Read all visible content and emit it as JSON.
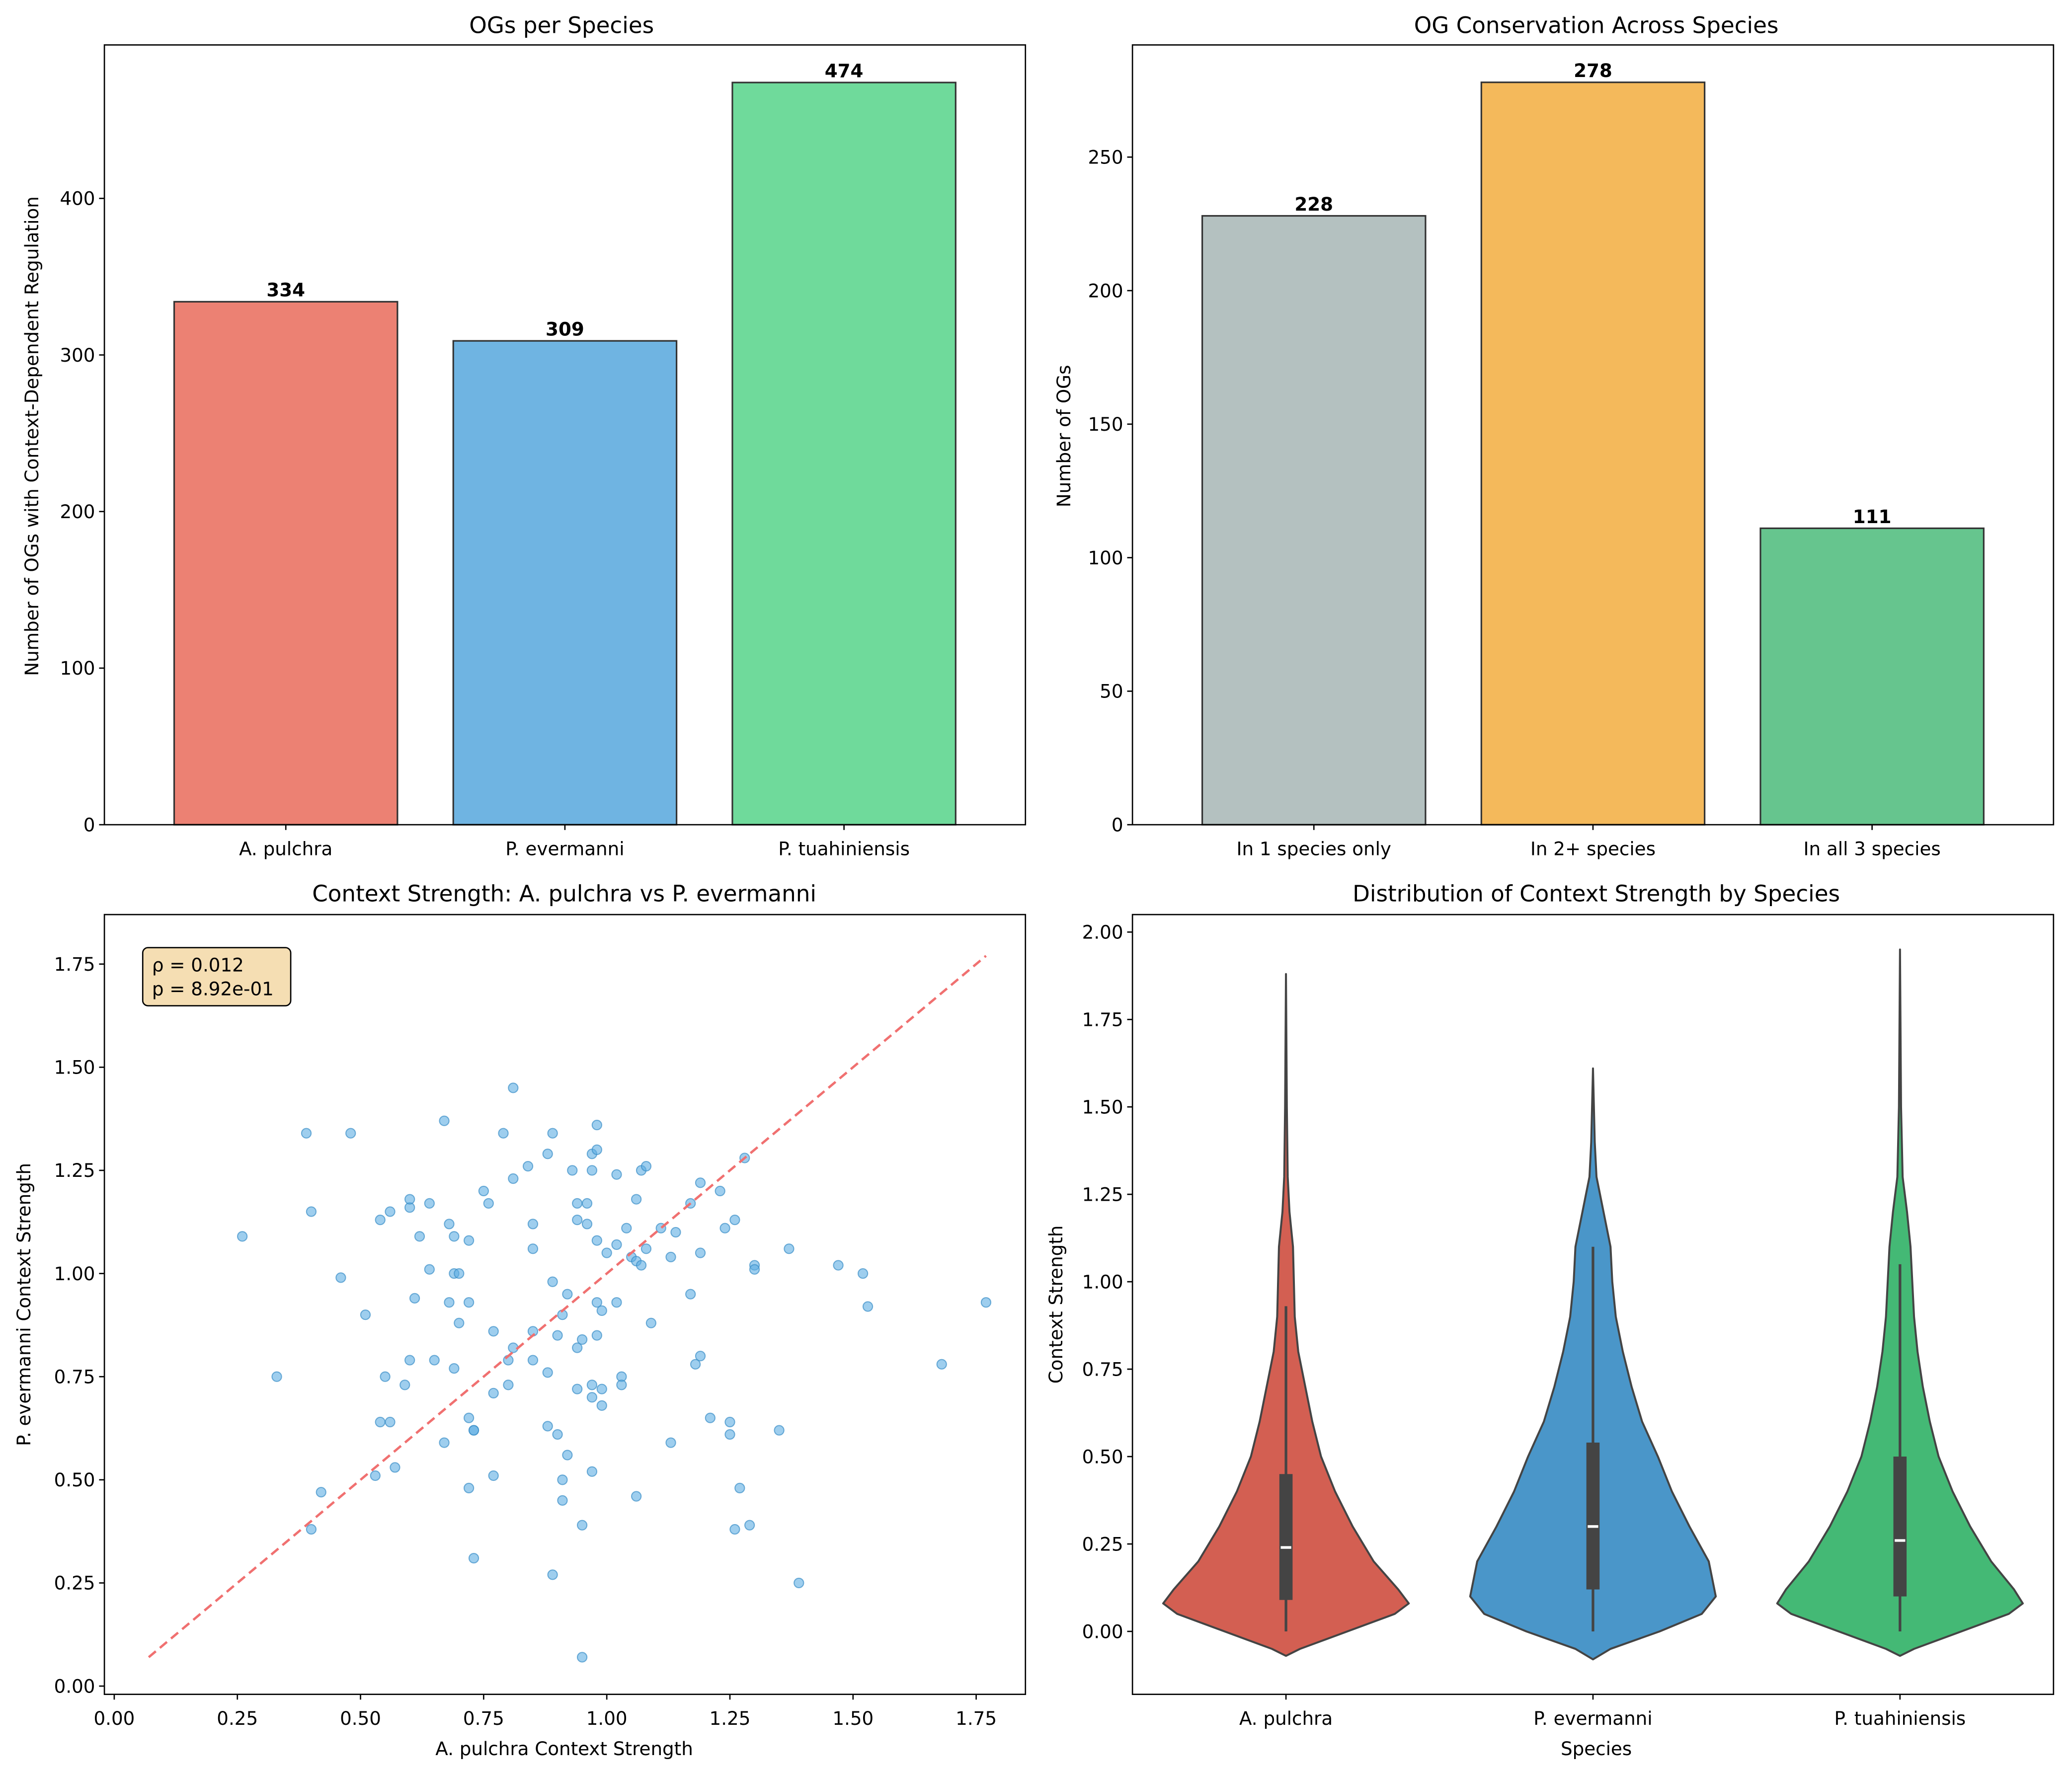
{
  "chart_data": [
    {
      "id": "og-per-species",
      "type": "bar",
      "title": "OGs per Species",
      "xlabel": "",
      "ylabel": "Number of OGs with Context-Dependent Regulation",
      "categories": [
        "A. pulchra",
        "P. evermanni",
        "P. tuahiniensis"
      ],
      "values": [
        334,
        309,
        474
      ],
      "value_labels": [
        "334",
        "309",
        "474"
      ],
      "colors": [
        "#ec8173",
        "#6fb4e2",
        "#6fda9b"
      ],
      "ylim": [
        0,
        498
      ],
      "yticks": [
        0,
        100,
        200,
        300,
        400
      ],
      "ytick_labels": [
        "0",
        "100",
        "200",
        "300",
        "400"
      ],
      "grid": false
    },
    {
      "id": "og-conservation",
      "type": "bar",
      "title": "OG Conservation Across Species",
      "xlabel": "",
      "ylabel": "Number of OGs",
      "categories": [
        "In 1 species only",
        "In 2+ species",
        "In all 3 species"
      ],
      "values": [
        228,
        278,
        111
      ],
      "value_labels": [
        "228",
        "278",
        "111"
      ],
      "colors": [
        "#b4c1c0",
        "#f4b95b",
        "#66c58e"
      ],
      "ylim": [
        0,
        292
      ],
      "yticks": [
        0,
        50,
        100,
        150,
        200,
        250
      ],
      "ytick_labels": [
        "0",
        "50",
        "100",
        "150",
        "200",
        "250"
      ],
      "grid": false
    },
    {
      "id": "context-strength-scatter",
      "type": "scatter",
      "title": "Context Strength: A. pulchra vs P. evermanni",
      "xlabel": "A. pulchra Context Strength",
      "ylabel": "P. evermanni Context Strength",
      "xlim": [
        -0.02,
        1.85
      ],
      "ylim": [
        -0.02,
        1.87
      ],
      "xticks": [
        0.0,
        0.25,
        0.5,
        0.75,
        1.0,
        1.25,
        1.5,
        1.75
      ],
      "xtick_labels": [
        "0.00",
        "0.25",
        "0.50",
        "0.75",
        "1.00",
        "1.25",
        "1.50",
        "1.75"
      ],
      "yticks": [
        0.0,
        0.25,
        0.5,
        0.75,
        1.0,
        1.25,
        1.5,
        1.75
      ],
      "ytick_labels": [
        "0.00",
        "0.25",
        "0.50",
        "0.75",
        "1.00",
        "1.25",
        "1.50",
        "1.75"
      ],
      "point_color": "#5dade2",
      "reference_line": {
        "from": [
          0.07,
          0.07
        ],
        "to": [
          1.77,
          1.77
        ],
        "color": "#f07070",
        "style": "dashed"
      },
      "annotation": {
        "lines": [
          "ρ = 0.012",
          "p = 8.92e-01"
        ],
        "position": "top-left",
        "background": "#f5deb3"
      },
      "grid": false,
      "points": [
        [
          0.26,
          1.09
        ],
        [
          0.33,
          0.75
        ],
        [
          0.39,
          1.34
        ],
        [
          0.4,
          1.15
        ],
        [
          0.4,
          0.38
        ],
        [
          0.42,
          0.47
        ],
        [
          0.46,
          0.99
        ],
        [
          0.48,
          1.34
        ],
        [
          0.51,
          0.9
        ],
        [
          0.53,
          0.51
        ],
        [
          0.54,
          1.13
        ],
        [
          0.54,
          0.64
        ],
        [
          0.55,
          0.75
        ],
        [
          0.56,
          1.15
        ],
        [
          0.56,
          0.64
        ],
        [
          0.57,
          0.53
        ],
        [
          0.59,
          0.73
        ],
        [
          0.6,
          1.16
        ],
        [
          0.6,
          1.18
        ],
        [
          0.6,
          0.79
        ],
        [
          0.61,
          0.94
        ],
        [
          0.62,
          1.09
        ],
        [
          0.64,
          1.17
        ],
        [
          0.64,
          1.01
        ],
        [
          0.65,
          0.79
        ],
        [
          0.67,
          1.37
        ],
        [
          0.67,
          0.59
        ],
        [
          0.68,
          1.12
        ],
        [
          0.68,
          0.93
        ],
        [
          0.69,
          0.77
        ],
        [
          0.69,
          1.09
        ],
        [
          0.69,
          1.0
        ],
        [
          0.7,
          1.0
        ],
        [
          0.7,
          0.88
        ],
        [
          0.72,
          1.08
        ],
        [
          0.72,
          0.93
        ],
        [
          0.72,
          0.65
        ],
        [
          0.72,
          0.48
        ],
        [
          0.73,
          0.62
        ],
        [
          0.73,
          0.62
        ],
        [
          0.73,
          0.31
        ],
        [
          0.75,
          1.2
        ],
        [
          0.76,
          1.17
        ],
        [
          0.77,
          0.86
        ],
        [
          0.77,
          0.71
        ],
        [
          0.77,
          0.51
        ],
        [
          0.79,
          1.34
        ],
        [
          0.8,
          0.79
        ],
        [
          0.8,
          0.73
        ],
        [
          0.81,
          1.45
        ],
        [
          0.81,
          1.23
        ],
        [
          0.81,
          0.82
        ],
        [
          0.84,
          1.26
        ],
        [
          0.85,
          1.06
        ],
        [
          0.85,
          0.86
        ],
        [
          0.85,
          1.12
        ],
        [
          0.85,
          0.79
        ],
        [
          0.88,
          1.29
        ],
        [
          0.88,
          0.76
        ],
        [
          0.88,
          0.63
        ],
        [
          0.89,
          1.34
        ],
        [
          0.89,
          0.98
        ],
        [
          0.9,
          0.85
        ],
        [
          0.9,
          0.61
        ],
        [
          0.89,
          0.27
        ],
        [
          0.91,
          0.9
        ],
        [
          0.91,
          0.5
        ],
        [
          0.91,
          0.45
        ],
        [
          0.92,
          0.56
        ],
        [
          0.92,
          0.95
        ],
        [
          0.93,
          1.25
        ],
        [
          0.94,
          1.17
        ],
        [
          0.94,
          1.13
        ],
        [
          0.94,
          0.82
        ],
        [
          0.94,
          0.72
        ],
        [
          0.95,
          0.84
        ],
        [
          0.95,
          0.39
        ],
        [
          0.95,
          0.07
        ],
        [
          0.96,
          1.12
        ],
        [
          0.96,
          1.17
        ],
        [
          0.97,
          1.29
        ],
        [
          0.97,
          1.25
        ],
        [
          0.97,
          0.73
        ],
        [
          0.97,
          0.7
        ],
        [
          0.97,
          0.52
        ],
        [
          0.98,
          1.36
        ],
        [
          0.98,
          1.3
        ],
        [
          0.98,
          0.93
        ],
        [
          0.98,
          0.85
        ],
        [
          0.98,
          1.08
        ],
        [
          0.99,
          0.72
        ],
        [
          0.99,
          0.91
        ],
        [
          0.99,
          0.68
        ],
        [
          1.0,
          1.05
        ],
        [
          1.02,
          1.24
        ],
        [
          1.02,
          1.07
        ],
        [
          1.02,
          0.93
        ],
        [
          1.03,
          0.75
        ],
        [
          1.03,
          0.73
        ],
        [
          1.04,
          1.11
        ],
        [
          1.05,
          1.04
        ],
        [
          1.06,
          1.18
        ],
        [
          1.06,
          1.03
        ],
        [
          1.06,
          0.46
        ],
        [
          1.07,
          1.25
        ],
        [
          1.07,
          1.02
        ],
        [
          1.08,
          1.26
        ],
        [
          1.08,
          1.06
        ],
        [
          1.09,
          0.88
        ],
        [
          1.11,
          1.11
        ],
        [
          1.13,
          1.04
        ],
        [
          1.13,
          0.59
        ],
        [
          1.14,
          1.1
        ],
        [
          1.17,
          1.17
        ],
        [
          1.17,
          0.95
        ],
        [
          1.18,
          0.78
        ],
        [
          1.19,
          0.8
        ],
        [
          1.19,
          1.22
        ],
        [
          1.19,
          1.05
        ],
        [
          1.21,
          0.65
        ],
        [
          1.23,
          1.2
        ],
        [
          1.24,
          1.11
        ],
        [
          1.25,
          0.64
        ],
        [
          1.25,
          0.61
        ],
        [
          1.26,
          1.13
        ],
        [
          1.26,
          0.38
        ],
        [
          1.27,
          0.48
        ],
        [
          1.28,
          1.28
        ],
        [
          1.3,
          1.02
        ],
        [
          1.3,
          1.01
        ],
        [
          1.29,
          0.39
        ],
        [
          1.35,
          0.62
        ],
        [
          1.37,
          1.06
        ],
        [
          1.39,
          0.25
        ],
        [
          1.47,
          1.02
        ],
        [
          1.52,
          1.0
        ],
        [
          1.53,
          0.92
        ],
        [
          1.68,
          0.78
        ],
        [
          1.77,
          0.93
        ]
      ]
    },
    {
      "id": "context-strength-violin",
      "type": "violin",
      "title": "Distribution of Context Strength by Species",
      "xlabel": "Species",
      "ylabel": "Context Strength",
      "categories": [
        "A. pulchra",
        "P. evermanni",
        "P. tuahiniensis"
      ],
      "colors": [
        "#d35f52",
        "#4a96c9",
        "#44b975"
      ],
      "ylim": [
        -0.18,
        2.05
      ],
      "yticks": [
        0.0,
        0.25,
        0.5,
        0.75,
        1.0,
        1.25,
        1.5,
        1.75,
        2.0
      ],
      "ytick_labels": [
        "0.00",
        "0.25",
        "0.50",
        "0.75",
        "1.00",
        "1.25",
        "1.50",
        "1.75",
        "2.00"
      ],
      "grid": false,
      "series": [
        {
          "name": "A. pulchra",
          "min": 0.0,
          "q1": 0.09,
          "median": 0.24,
          "q3": 0.45,
          "whisker_high": 0.93,
          "kde_low": -0.07,
          "kde_high": 1.88,
          "profile": [
            [
              -0.07,
              0.0
            ],
            [
              -0.05,
              0.08
            ],
            [
              0.0,
              0.35
            ],
            [
              0.05,
              0.62
            ],
            [
              0.08,
              0.7
            ],
            [
              0.12,
              0.64
            ],
            [
              0.2,
              0.5
            ],
            [
              0.3,
              0.38
            ],
            [
              0.4,
              0.28
            ],
            [
              0.5,
              0.2
            ],
            [
              0.6,
              0.15
            ],
            [
              0.7,
              0.11
            ],
            [
              0.8,
              0.07
            ],
            [
              0.9,
              0.05
            ],
            [
              1.0,
              0.045
            ],
            [
              1.1,
              0.04
            ],
            [
              1.2,
              0.02
            ],
            [
              1.3,
              0.01
            ],
            [
              1.5,
              0.005
            ],
            [
              1.88,
              0.0
            ]
          ]
        },
        {
          "name": "P. evermanni",
          "min": 0.0,
          "q1": 0.12,
          "median": 0.3,
          "q3": 0.54,
          "whisker_high": 1.1,
          "kde_low": -0.08,
          "kde_high": 1.61,
          "profile": [
            [
              -0.08,
              0.0
            ],
            [
              -0.05,
              0.1
            ],
            [
              0.0,
              0.38
            ],
            [
              0.05,
              0.62
            ],
            [
              0.1,
              0.7
            ],
            [
              0.2,
              0.66
            ],
            [
              0.3,
              0.55
            ],
            [
              0.4,
              0.45
            ],
            [
              0.5,
              0.37
            ],
            [
              0.6,
              0.28
            ],
            [
              0.7,
              0.22
            ],
            [
              0.8,
              0.17
            ],
            [
              0.9,
              0.13
            ],
            [
              1.0,
              0.11
            ],
            [
              1.1,
              0.1
            ],
            [
              1.2,
              0.06
            ],
            [
              1.3,
              0.02
            ],
            [
              1.4,
              0.01
            ],
            [
              1.61,
              0.0
            ]
          ]
        },
        {
          "name": "P. tuahiniensis",
          "min": 0.0,
          "q1": 0.1,
          "median": 0.26,
          "q3": 0.5,
          "whisker_high": 1.05,
          "kde_low": -0.07,
          "kde_high": 1.95,
          "profile": [
            [
              -0.07,
              0.0
            ],
            [
              -0.05,
              0.08
            ],
            [
              0.0,
              0.35
            ],
            [
              0.05,
              0.62
            ],
            [
              0.08,
              0.7
            ],
            [
              0.12,
              0.65
            ],
            [
              0.2,
              0.52
            ],
            [
              0.3,
              0.4
            ],
            [
              0.4,
              0.3
            ],
            [
              0.5,
              0.22
            ],
            [
              0.6,
              0.17
            ],
            [
              0.7,
              0.13
            ],
            [
              0.8,
              0.1
            ],
            [
              0.9,
              0.08
            ],
            [
              1.0,
              0.07
            ],
            [
              1.1,
              0.06
            ],
            [
              1.2,
              0.04
            ],
            [
              1.3,
              0.015
            ],
            [
              1.5,
              0.006
            ],
            [
              1.95,
              0.0
            ]
          ]
        }
      ]
    }
  ]
}
